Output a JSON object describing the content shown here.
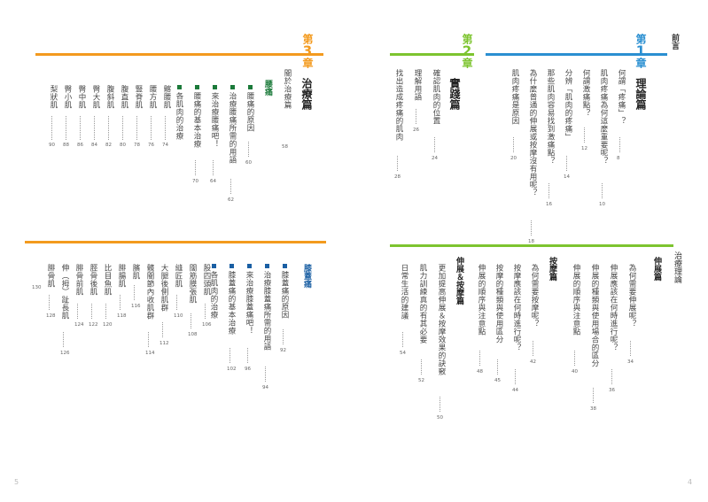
{
  "colors": {
    "orange": "#f39a1e",
    "green": "#7dc42f",
    "blue": "#2a8fd1",
    "dark_green": "#1b7a3a",
    "dark_blue": "#1a5fa3"
  },
  "preface": "前言",
  "ch1": {
    "label": "第",
    "num": "1",
    "suffix": "章",
    "title": "理論篇",
    "items": [
      {
        "t": "何謂「疼痛」？",
        "p": "8"
      },
      {
        "t": "肌肉疼痛為何這麼重要呢？",
        "p": "10"
      },
      {
        "t": "何謂激痛點？",
        "p": "12"
      },
      {
        "t": "分辨「肌肉的疼痛」",
        "p": "14"
      },
      {
        "t": "那些肌肉容易找到激痛點？",
        "p": "16"
      },
      {
        "t": "為什麼普通的伸展或按摩沒有用呢？",
        "p": "18"
      },
      {
        "t": "肌肉疼痛是原因",
        "p": "20"
      }
    ]
  },
  "ch2": {
    "label": "第",
    "num": "2",
    "suffix": "章",
    "title": "實踐篇",
    "items": [
      {
        "t": "確認肌肉的位置",
        "p": "24"
      },
      {
        "t": "理解用語",
        "p": "26"
      },
      {
        "t": "找出造成疼痛的肌肉",
        "p": "28"
      }
    ]
  },
  "ch3": {
    "label": "第",
    "num": "3",
    "suffix": "章",
    "title": "治療篇",
    "intro": {
      "t": "關於治療篇",
      "p": "58"
    },
    "section": "腰痛",
    "subs": [
      {
        "t": "腰痛的原因",
        "p": "60"
      },
      {
        "t": "治療腰痛所需的用語",
        "p": "62"
      },
      {
        "t": "來治療腰痛吧！",
        "p": "64"
      },
      {
        "t": "腰痛的基本治療",
        "p": "70"
      },
      {
        "t": "各肌肉的治療",
        "p": ""
      }
    ],
    "muscles": [
      {
        "t": "髂腰肌",
        "p": "74"
      },
      {
        "t": "腰方肌",
        "p": "76"
      },
      {
        "t": "豎脊肌",
        "p": "78"
      },
      {
        "t": "腹直肌",
        "p": "80"
      },
      {
        "t": "腹斜肌",
        "p": "82"
      },
      {
        "t": "臀大肌",
        "p": "84"
      },
      {
        "t": "臀中肌",
        "p": "86"
      },
      {
        "t": "臀小肌",
        "p": "88"
      },
      {
        "t": "梨狀肌",
        "p": "90"
      }
    ]
  },
  "knee": {
    "section": "膝蓋痛",
    "subs": [
      {
        "t": "膝蓋痛的原因",
        "p": "92"
      },
      {
        "t": "治療膝蓋痛所需的用語",
        "p": "94"
      },
      {
        "t": "來治療膝蓋痛吧！",
        "p": "96"
      },
      {
        "t": "膝蓋痛的基本治療",
        "p": "102"
      },
      {
        "t": "各肌肉的治療",
        "p": ""
      }
    ],
    "muscles": [
      {
        "t": "股四頭肌",
        "p": "106"
      },
      {
        "t": "闊筋膜張肌",
        "p": "108"
      },
      {
        "t": "縫匠肌",
        "p": "110"
      },
      {
        "t": "大腿後側肌群",
        "p": "112"
      },
      {
        "t": "髖關節內收肌群",
        "p": "114"
      },
      {
        "t": "臏肌",
        "p": "116"
      },
      {
        "t": "腓腸肌",
        "p": "118"
      },
      {
        "t": "比目魚肌",
        "p": "120"
      },
      {
        "t": "脛骨後肌",
        "p": "122"
      },
      {
        "t": "腓骨前肌",
        "p": "124"
      },
      {
        "t": "伸（拇）趾長肌",
        "p": "126"
      },
      {
        "t": "腓骨肌",
        "p": "128"
      },
      {
        "t": "",
        "p": "130"
      }
    ]
  },
  "stretch": {
    "header": "治療理論",
    "section": "伸展篇",
    "items": [
      {
        "t": "為何需要伸展呢？",
        "p": "34"
      },
      {
        "t": "伸展應該在何時進行呢？",
        "p": "36"
      },
      {
        "t": "伸展的種類與使用場合的區分",
        "p": "38"
      },
      {
        "t": "伸展的順序與注意點",
        "p": "40"
      }
    ]
  },
  "massage": {
    "section": "按摩篇",
    "items": [
      {
        "t": "為何需要按摩呢？",
        "p": "42"
      },
      {
        "t": "按摩應該在何時進行呢？",
        "p": "44"
      },
      {
        "t": "按摩的種類與使用區分",
        "p": "45"
      },
      {
        "t": "伸展的順序與注意點",
        "p": "48"
      }
    ]
  },
  "combo": {
    "section": "伸展＆按摩篇",
    "items": [
      {
        "t": "更加提高伸展＆按摩效果的訣竅",
        "p": "50"
      },
      {
        "t": "肌力訓練真的有其必要",
        "p": "52"
      },
      {
        "t": "日常生活的建議",
        "p": "54"
      }
    ]
  },
  "folio_left": "5",
  "folio_right": "4"
}
